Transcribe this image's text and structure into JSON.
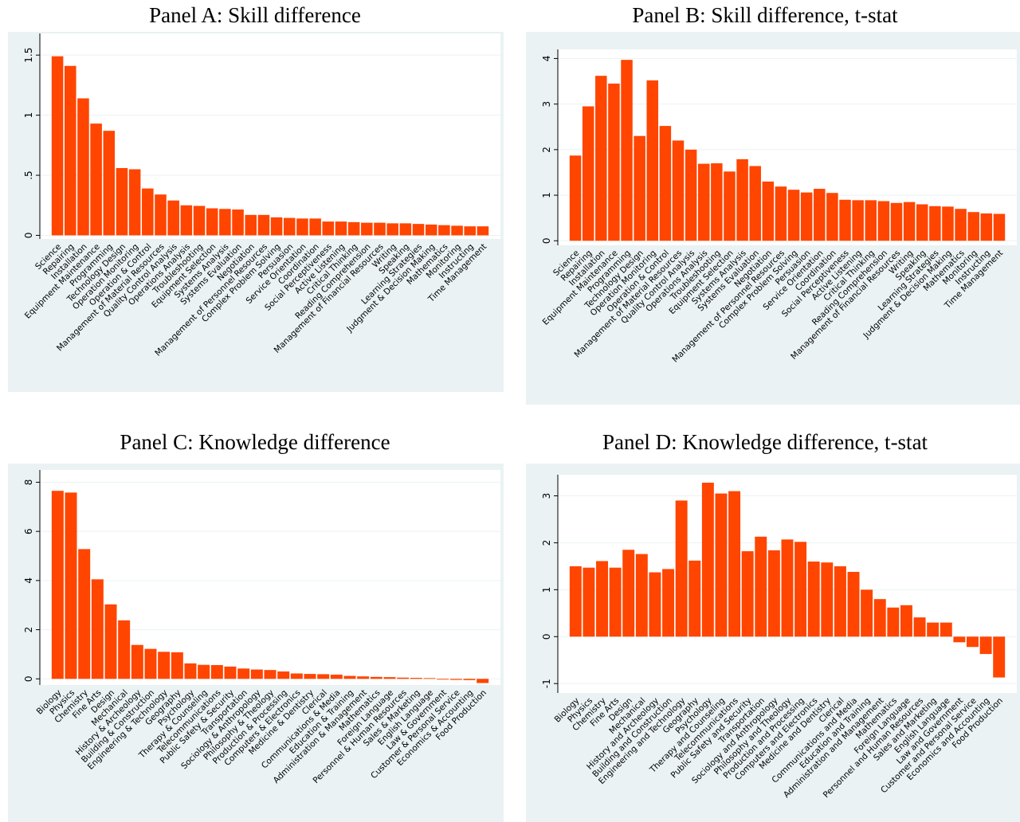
{
  "chart_data": [
    {
      "type": "bar",
      "title": "Panel A: Skill difference",
      "color": "#ff4500",
      "grid": true,
      "categories": [
        "Science",
        "Repairing",
        "Installation",
        "Equipment Maintenance",
        "Programming",
        "Technology Design",
        "Operation Monitoring",
        "Operation & Control",
        "Management of Material Resources",
        "Quality Control Analysis",
        "Operations Analysis",
        "Troubleshooting",
        "Equipment Selection",
        "Systems Analysis",
        "Systems Evaluation",
        "Negotiation",
        "Management of Personnel Resources",
        "Complex Problem Solving",
        "Persuasion",
        "Service Orientation",
        "Coordination",
        "Social Perceptiveness",
        "Active Listening",
        "Critical Thinking",
        "Reading Comprehension",
        "Management of Financial Resources",
        "Writing",
        "Speaking",
        "Learning Strategies",
        "Judgment & Decision Making",
        "Mathematics",
        "Monitoring",
        "Instructing",
        "Time Management"
      ],
      "values": [
        1.49,
        1.41,
        1.14,
        0.93,
        0.87,
        0.56,
        0.55,
        0.39,
        0.34,
        0.29,
        0.25,
        0.245,
        0.225,
        0.22,
        0.215,
        0.17,
        0.17,
        0.15,
        0.145,
        0.14,
        0.14,
        0.115,
        0.115,
        0.11,
        0.105,
        0.105,
        0.1,
        0.1,
        0.095,
        0.09,
        0.085,
        0.08,
        0.075,
        0.075
      ],
      "ylim": [
        -0.03,
        1.68
      ],
      "yticks": [
        0,
        {
          "value": 0.5,
          "label": ".5"
        },
        1,
        1.5
      ]
    },
    {
      "type": "bar",
      "title": "Panel B: Skill difference, t-stat",
      "color": "#ff4500",
      "grid": true,
      "categories": [
        "Science",
        "Repairing",
        "Installation",
        "Equipment Maintenance",
        "Programming",
        "Technology Design",
        "Operation Monitoring",
        "Operation & Control",
        "Management of Material Resources",
        "Quality Control Analysis",
        "Operations Analysis",
        "Troubleshooting",
        "Equipment Selection",
        "Systems Analysis",
        "Systems Evaluation",
        "Negotiation",
        "Management of Personnel Resources",
        "Complex Problem Solving",
        "Persuasion",
        "Service Orientation",
        "Coordination",
        "Social Perceptiveness",
        "Active Listening",
        "Critical Thinking",
        "Reading Comprehension",
        "Management of Financial Resources",
        "Writing",
        "Speaking",
        "Learning Strategies",
        "Judgment & Decision Making",
        "Mathematics",
        "Monitoring",
        "Instructing",
        "Time Management"
      ],
      "values": [
        1.87,
        2.95,
        3.62,
        3.45,
        3.97,
        2.3,
        3.52,
        2.52,
        2.2,
        2.0,
        1.69,
        1.7,
        1.52,
        1.79,
        1.64,
        1.3,
        1.19,
        1.12,
        1.06,
        1.14,
        1.05,
        0.9,
        0.89,
        0.89,
        0.87,
        0.83,
        0.85,
        0.8,
        0.76,
        0.75,
        0.7,
        0.63,
        0.6,
        0.59
      ],
      "ylim": [
        -0.1,
        4.2
      ],
      "yticks": [
        0,
        1,
        2,
        3,
        4
      ]
    },
    {
      "type": "bar",
      "title": "Panel C: Knowledge difference",
      "color": "#ff4500",
      "grid": true,
      "categories": [
        "Biology",
        "Physics",
        "Chemistry",
        "Fine Arts",
        "Design",
        "Mechanical",
        "History & Archeology",
        "Building & Construction",
        "Engineering & Technology",
        "Geography",
        "Psychology",
        "Therapy & Counseling",
        "Telecommunications",
        "Public Safety & Security",
        "Transportation",
        "Sociology & Anthropology",
        "Philosophy & Theology",
        "Production & Processing",
        "Computers & Electronics",
        "Medicine & Dentistry",
        "Clerical",
        "Communications & Media",
        "Education & Training",
        "Administration & Management",
        "Mathematics",
        "Foreign Language",
        "Personnel & Human Resources",
        "Sales & Marketing",
        "English Language",
        "Law & Government",
        "Customer & Personal Service",
        "Economics & Accounting",
        "Food Production"
      ],
      "values": [
        7.65,
        7.58,
        5.28,
        4.05,
        3.03,
        2.38,
        1.38,
        1.22,
        1.1,
        1.08,
        0.63,
        0.57,
        0.56,
        0.5,
        0.42,
        0.38,
        0.36,
        0.3,
        0.22,
        0.2,
        0.19,
        0.17,
        0.12,
        0.1,
        0.08,
        0.07,
        0.05,
        0.04,
        0.03,
        -0.03,
        -0.04,
        -0.05,
        -0.17
      ],
      "ylim": [
        -0.25,
        8.5
      ],
      "yticks": [
        0,
        2,
        4,
        6,
        8
      ]
    },
    {
      "type": "bar",
      "title": "Panel D: Knowledge difference, t-stat",
      "color": "#ff4500",
      "grid": true,
      "categories": [
        "Biology",
        "Physics",
        "Chemistry",
        "Fine Arts",
        "Design",
        "Mechanical",
        "History and Archeology",
        "Building and Construction",
        "Engineering and Technology",
        "Geography",
        "Psychology",
        "Therapy and Counseling",
        "Telecommunications",
        "Public Safety and Security",
        "Transportation",
        "Sociology and Anthropology",
        "Philosophy and Theology",
        "Production and Processing",
        "Computers and Electronics",
        "Medicine and Dentistry",
        "Clerical",
        "Communications and Media",
        "Education and Training",
        "Administration and Management",
        "Mathematics",
        "Foreign Language",
        "Personnel and Human Resources",
        "Sales and Marketing",
        "English Language",
        "Law and Government",
        "Customer and Personal Service",
        "Economics and Accounting",
        "Food Production"
      ],
      "values": [
        1.5,
        1.47,
        1.61,
        1.47,
        1.85,
        1.76,
        1.37,
        1.44,
        2.9,
        1.62,
        3.28,
        3.05,
        3.1,
        1.82,
        2.13,
        1.84,
        2.07,
        2.02,
        1.6,
        1.58,
        1.5,
        1.38,
        1.0,
        0.8,
        0.62,
        0.67,
        0.41,
        0.3,
        0.3,
        -0.12,
        -0.22,
        -0.37,
        -0.87
      ],
      "ylim": [
        -1.2,
        3.45
      ],
      "yticks": [
        -1,
        0,
        1,
        2,
        3
      ]
    }
  ]
}
